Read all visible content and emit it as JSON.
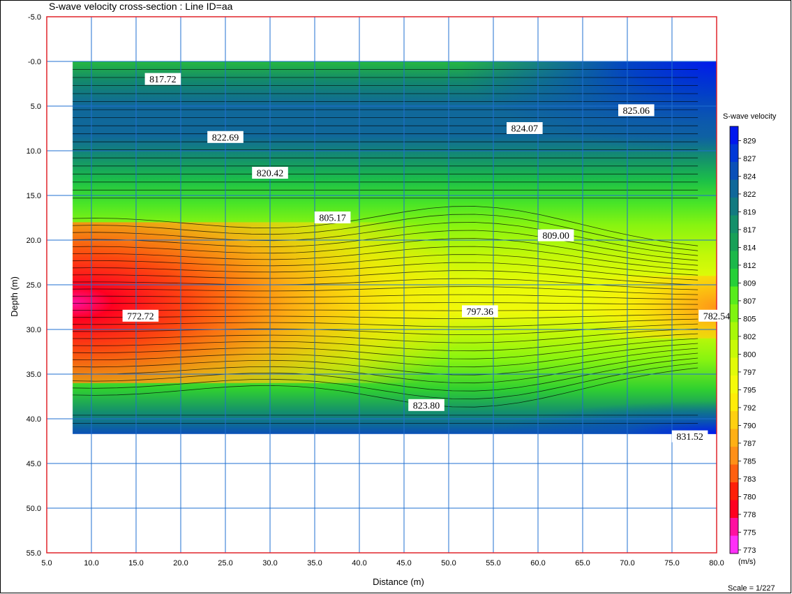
{
  "chart_data": {
    "type": "heatmap",
    "title": "S-wave velocity cross-section : Line ID=aa",
    "xlabel": "Distance (m)",
    "ylabel": "Depth (m)",
    "xlim": [
      5.0,
      80.0
    ],
    "ylim": [
      -5.0,
      55.0
    ],
    "x_ticks": [
      "5.0",
      "10.0",
      "15.0",
      "20.0",
      "25.0",
      "30.0",
      "35.0",
      "40.0",
      "45.0",
      "50.0",
      "55.0",
      "60.0",
      "65.0",
      "70.0",
      "75.0",
      "80.0"
    ],
    "y_ticks": [
      "-5.0",
      "-0.0",
      "5.0",
      "10.0",
      "15.0",
      "20.0",
      "25.0",
      "30.0",
      "35.0",
      "40.0",
      "45.0",
      "50.0",
      "55.0"
    ],
    "data_extent": {
      "x": [
        7.9,
        80.0
      ],
      "depth": [
        0.0,
        41.7
      ]
    },
    "contour_labels": [
      {
        "x": 18.0,
        "depth": 2.0,
        "text": "817.72"
      },
      {
        "x": 25.0,
        "depth": 8.5,
        "text": "822.69"
      },
      {
        "x": 30.0,
        "depth": 12.5,
        "text": "820.42"
      },
      {
        "x": 37.0,
        "depth": 17.5,
        "text": "805.17"
      },
      {
        "x": 58.5,
        "depth": 7.5,
        "text": "824.07"
      },
      {
        "x": 71.0,
        "depth": 5.5,
        "text": "825.06"
      },
      {
        "x": 62.0,
        "depth": 19.5,
        "text": "809.00"
      },
      {
        "x": 15.5,
        "depth": 28.5,
        "text": "772.72"
      },
      {
        "x": 53.5,
        "depth": 28.0,
        "text": "797.36"
      },
      {
        "x": 80.0,
        "depth": 28.5,
        "text": "782.54"
      },
      {
        "x": 47.5,
        "depth": 38.5,
        "text": "823.80"
      },
      {
        "x": 77.0,
        "depth": 42.0,
        "text": "831.52"
      }
    ],
    "colorbar": {
      "title": "S-wave velocity",
      "unit": "(m/s)",
      "labels": [
        "829",
        "827",
        "824",
        "822",
        "819",
        "817",
        "814",
        "812",
        "809",
        "807",
        "805",
        "802",
        "800",
        "797",
        "795",
        "792",
        "790",
        "787",
        "785",
        "783",
        "780",
        "778",
        "775",
        "773"
      ],
      "colors": [
        "#0018ee",
        "#0038d8",
        "#0a50b8",
        "#10689a",
        "#127a80",
        "#15906a",
        "#18a058",
        "#1cb84a",
        "#26d038",
        "#58ec1c",
        "#80f410",
        "#a8f808",
        "#c8fa08",
        "#e2fb08",
        "#f5fa0a",
        "#ffec08",
        "#ffd010",
        "#ffb014",
        "#ff9018",
        "#ff6010",
        "#ff2008",
        "#ff0020",
        "#ff10a0",
        "#ff30f8"
      ]
    },
    "scale_text": "Scale = 1/227"
  },
  "colors": {
    "frame_red": "#e0242a",
    "grid_blue": "#1f6fd0"
  }
}
